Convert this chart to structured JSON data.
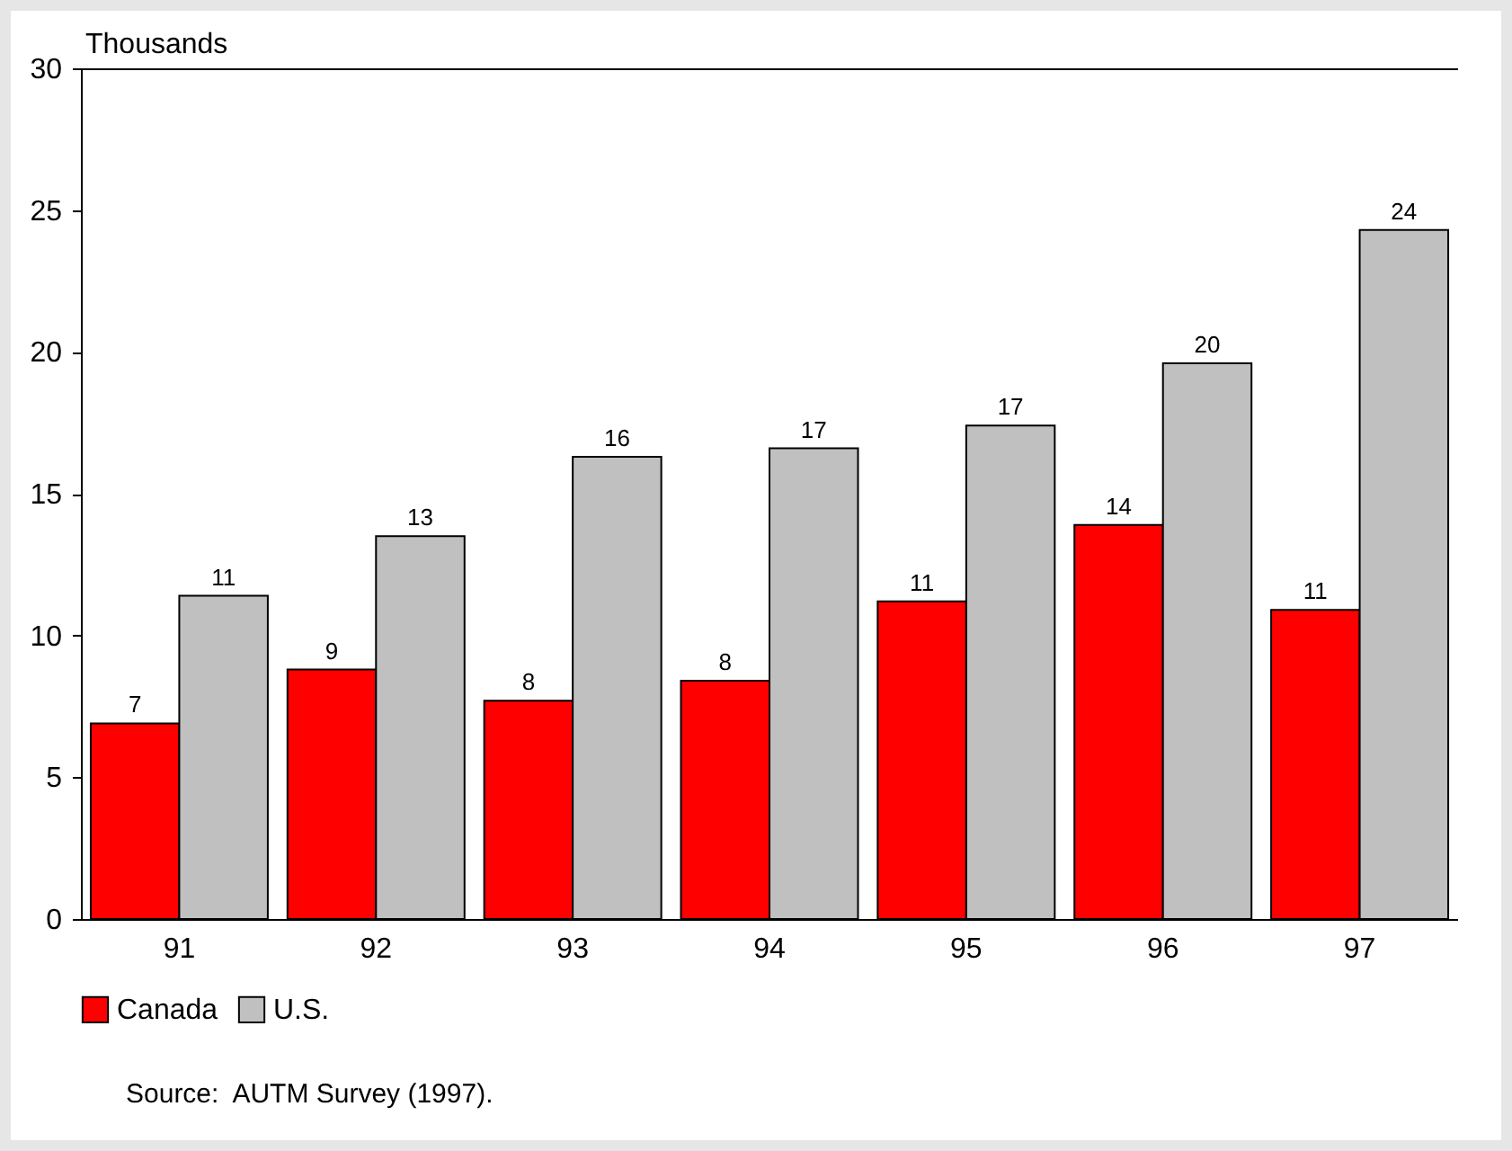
{
  "chart_data": {
    "type": "bar",
    "ylabel": "Thousands",
    "categories": [
      "91",
      "92",
      "93",
      "94",
      "95",
      "96",
      "97"
    ],
    "series": [
      {
        "name": "Canada",
        "color": "#ff0000",
        "values": [
          6.9,
          8.8,
          7.7,
          8.4,
          11.2,
          13.9,
          10.9
        ],
        "value_labels": [
          "7",
          "9",
          "8",
          "8",
          "11",
          "14",
          "11"
        ]
      },
      {
        "name": "U.S.",
        "color": "#c0c0c0",
        "values": [
          11.4,
          13.5,
          16.3,
          16.6,
          17.4,
          19.6,
          24.3
        ],
        "value_labels": [
          "11",
          "13",
          "16",
          "17",
          "17",
          "20",
          "24"
        ]
      }
    ],
    "ylim": [
      0,
      30
    ],
    "yticks": [
      0,
      5,
      10,
      15,
      20,
      25,
      30
    ],
    "grid": false,
    "legend": "bottom",
    "annotations": [
      "Source:  AUTM Survey (1997)."
    ]
  }
}
